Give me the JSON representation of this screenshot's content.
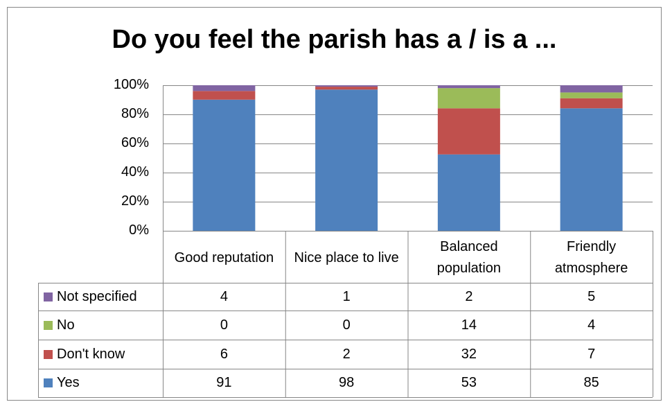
{
  "chart_data": {
    "type": "bar",
    "stacking": "percent",
    "title": "Do you feel the parish has a / is a ...",
    "categories": [
      "Good reputation",
      "Nice place to live",
      "Balanced population",
      "Friendly atmosphere"
    ],
    "series": [
      {
        "name": "Yes",
        "color": "#4f81bd",
        "values": [
          91,
          98,
          53,
          85
        ]
      },
      {
        "name": "Don't know",
        "color": "#c0504d",
        "values": [
          6,
          2,
          32,
          7
        ]
      },
      {
        "name": "No",
        "color": "#9bbb59",
        "values": [
          0,
          0,
          14,
          4
        ]
      },
      {
        "name": "Not specified",
        "color": "#8064a2",
        "values": [
          4,
          1,
          2,
          5
        ]
      }
    ],
    "ylim": [
      0,
      100
    ],
    "yticks": [
      {
        "value": 0,
        "label": "0%"
      },
      {
        "value": 20,
        "label": "20%"
      },
      {
        "value": 40,
        "label": "40%"
      },
      {
        "value": 60,
        "label": "60%"
      },
      {
        "value": 80,
        "label": "80%"
      },
      {
        "value": 100,
        "label": "100%"
      }
    ],
    "grid": true
  }
}
